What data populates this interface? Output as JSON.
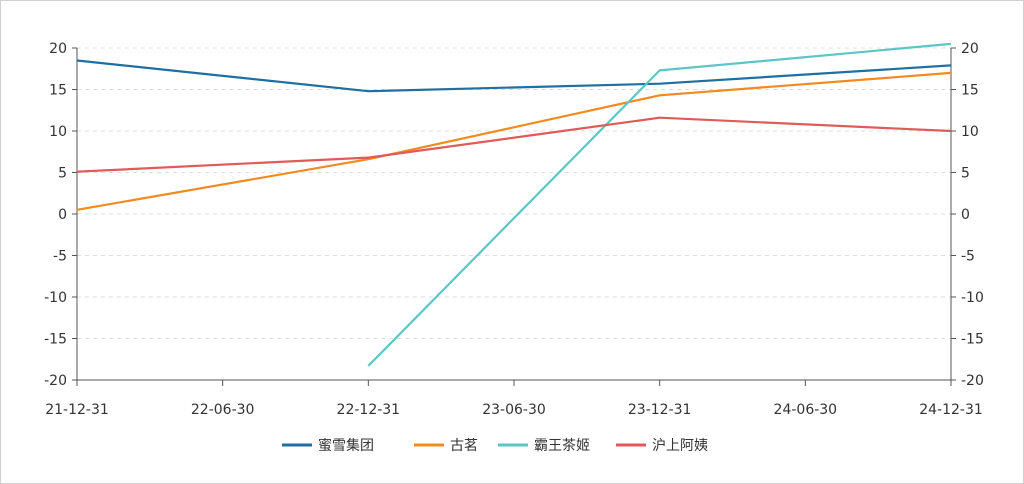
{
  "chart_data": {
    "type": "line",
    "categories": [
      "21-12-31",
      "22-06-30",
      "22-12-31",
      "23-06-30",
      "23-12-31",
      "24-06-30",
      "24-12-31"
    ],
    "x": [
      "21-12-31",
      "22-12-31",
      "23-12-31",
      "24-12-31"
    ],
    "ylim": [
      -20,
      20
    ],
    "yticks": [
      20,
      15,
      10,
      5,
      0,
      -5,
      -10,
      -15,
      -20
    ],
    "ytick_labels": [
      "20",
      "15",
      "10",
      "5",
      "0",
      "-5",
      "-10",
      "-15",
      "-20"
    ],
    "grid": true,
    "legend_position": "bottom",
    "series": [
      {
        "name": "蜜雪集团",
        "color": "#1f6fa3",
        "values": [
          18.5,
          14.8,
          15.7,
          17.9
        ]
      },
      {
        "name": "古茗",
        "color": "#f28a1f",
        "values": [
          0.5,
          6.6,
          14.3,
          17.0
        ]
      },
      {
        "name": "霸王茶姬",
        "color": "#5cc6c6",
        "values": [
          null,
          -18.3,
          17.3,
          20.5
        ]
      },
      {
        "name": "沪上阿姨",
        "color": "#e05a5a",
        "values": [
          5.1,
          6.8,
          11.6,
          10.0
        ]
      }
    ]
  }
}
